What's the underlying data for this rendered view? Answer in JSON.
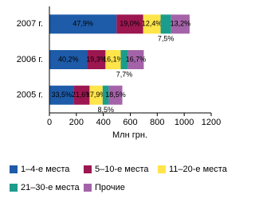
{
  "chart_data": {
    "type": "stacked-bar-horizontal",
    "categories": [
      "2005 г.",
      "2006 г.",
      "2007 г."
    ],
    "x_label": "Млн грн.",
    "xlim": [
      0,
      1200
    ],
    "xticks": [
      0,
      200,
      400,
      600,
      800,
      1000,
      1200
    ],
    "series": [
      {
        "name": "1–4-е места",
        "color": "#1e5ba8",
        "values": [
          181,
          281,
          498
        ],
        "share_labels": [
          "33,5%",
          "40,2%",
          "47,9%"
        ]
      },
      {
        "name": "5–10-е места",
        "color": "#9c1650",
        "values": [
          117,
          135,
          198
        ],
        "share_labels": [
          "21,6%",
          "19,3%",
          "19,0%"
        ]
      },
      {
        "name": "11–20-е места",
        "color": "#ffe44a",
        "values": [
          97,
          113,
          129
        ],
        "share_labels": [
          "17,9%",
          "16,1%",
          "12,4%"
        ]
      },
      {
        "name": "21–30-е места",
        "color": "#1c9c8c",
        "values": [
          46,
          54,
          78
        ],
        "share_labels": [
          "8,5%",
          "7,7%",
          "7,5%"
        ]
      },
      {
        "name": "Прочие",
        "color": "#a463a8",
        "values": [
          100,
          117,
          137
        ],
        "share_labels": [
          "18,5%",
          "16,7%",
          "13,2%"
        ]
      }
    ]
  }
}
